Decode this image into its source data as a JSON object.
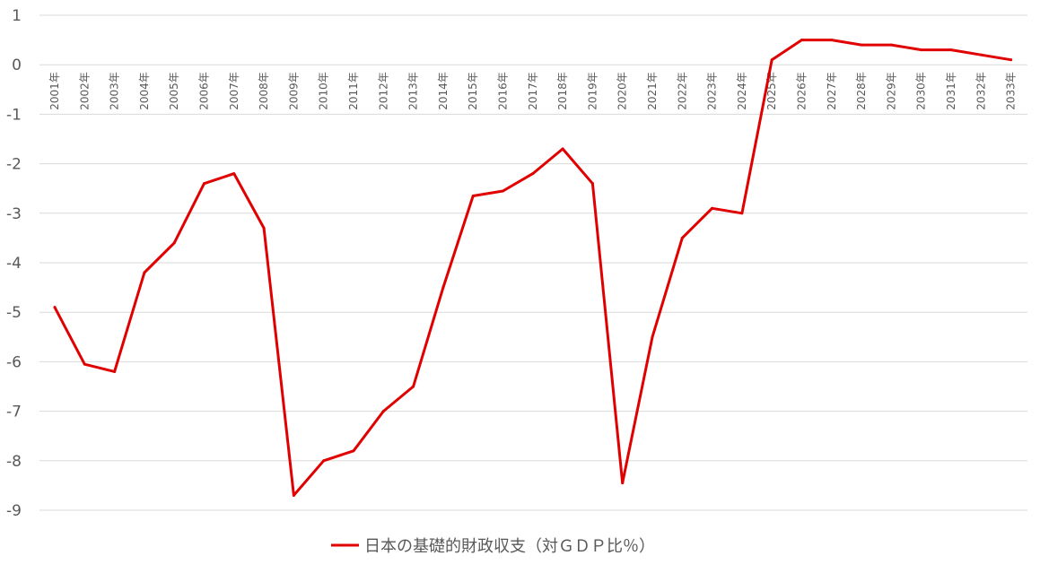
{
  "chart_data": {
    "type": "line",
    "categories": [
      "2001年",
      "2002年",
      "2003年",
      "2004年",
      "2005年",
      "2006年",
      "2007年",
      "2008年",
      "2009年",
      "2010年",
      "2011年",
      "2012年",
      "2013年",
      "2014年",
      "2015年",
      "2016年",
      "2017年",
      "2018年",
      "2019年",
      "2020年",
      "2021年",
      "2022年",
      "2023年",
      "2024年",
      "2025年",
      "2026年",
      "2027年",
      "2028年",
      "2029年",
      "2030年",
      "2031年",
      "2032年",
      "2033年"
    ],
    "series": [
      {
        "name": "日本の基礎的財政収支（対ＧＤＰ比％）",
        "color": "#e00000",
        "values": [
          -4.9,
          -6.05,
          -6.2,
          -4.2,
          -3.6,
          -2.4,
          -2.2,
          -3.3,
          -8.7,
          -8.0,
          -7.8,
          -7.0,
          -6.5,
          -4.5,
          -2.65,
          -2.55,
          -2.2,
          -1.7,
          -2.4,
          -8.45,
          -5.5,
          -3.5,
          -2.9,
          -3.0,
          0.1,
          0.5,
          0.5,
          0.4,
          0.4,
          0.3,
          0.3,
          0.2,
          0.1
        ]
      }
    ],
    "y_ticks": [
      "1",
      "0",
      "-1",
      "-2",
      "-3",
      "-4",
      "-5",
      "-6",
      "-7",
      "-8",
      "-9"
    ],
    "ylim": [
      -9,
      1
    ],
    "grid": true,
    "legend_position": "bottom-center",
    "title": "",
    "xlabel": "",
    "ylabel": ""
  }
}
